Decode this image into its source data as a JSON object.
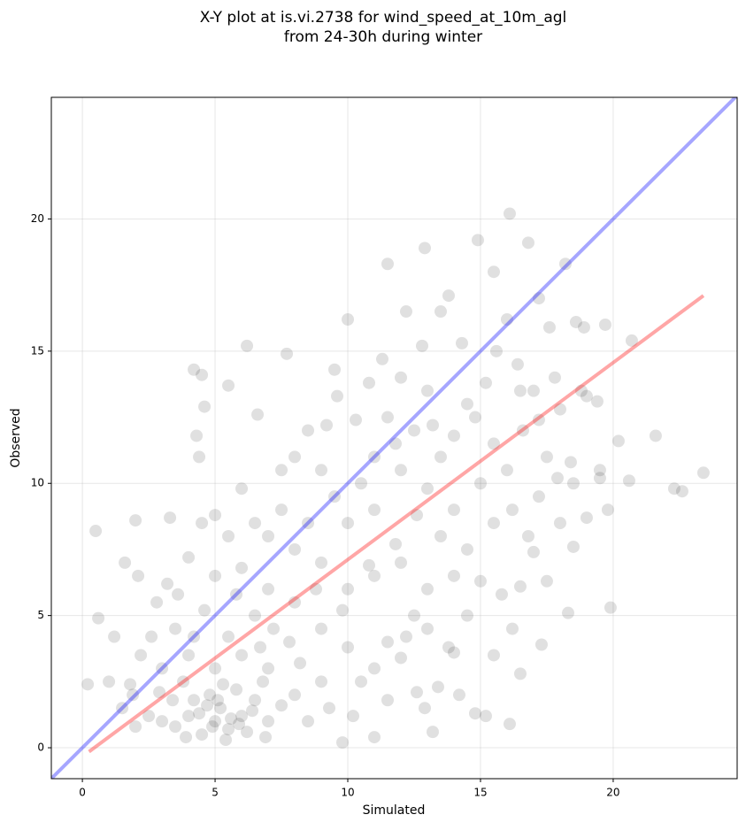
{
  "chart_data": {
    "type": "scatter",
    "title": [
      "X-Y plot at is.vi.2738 for wind_speed_at_10m_agl",
      "from 24-30h during winter"
    ],
    "xlabel": "Simulated",
    "ylabel": "Observed",
    "xlim": [
      -1.17,
      24.67
    ],
    "ylim": [
      -1.17,
      24.6
    ],
    "xticks": [
      0,
      5,
      10,
      15,
      20
    ],
    "yticks": [
      0,
      5,
      10,
      15,
      20
    ],
    "grid": true,
    "series": [
      {
        "color": "#000000",
        "alpha": 0.12,
        "x": [
          0.2,
          0.5,
          0.6,
          1,
          2,
          3.3,
          4.2,
          4.5,
          4.6,
          4.3,
          4.4,
          5.5,
          6.2,
          6.6,
          7.7,
          9.5,
          10,
          11.5,
          12.9,
          14.9,
          16.1,
          16.8,
          15.5,
          17.2,
          18.2,
          19.7,
          20.7,
          21.6,
          22.3,
          22.6,
          23.4,
          20.6,
          20.2,
          19.5,
          19.8,
          19.9,
          18.3,
          17.3,
          16.1,
          15.2,
          14.8,
          13.2,
          9.8,
          11,
          12.6,
          13.4,
          15.5,
          16.5,
          16.2,
          17,
          18.5,
          19,
          19,
          19.4,
          18.6,
          18.9,
          17.6,
          16,
          3,
          3.5,
          4,
          4.5,
          5,
          5.2,
          5.5,
          6,
          4.8,
          5.8,
          6.5,
          3.8,
          4.2,
          5.4,
          6.2,
          7,
          7.5,
          2.5,
          2,
          1.5,
          1.8,
          2.2,
          3,
          4,
          5,
          6,
          7,
          8,
          8.5,
          9,
          7.2,
          6.5,
          5.5,
          4.6,
          3.5,
          2.8,
          2.1,
          1.6,
          3.2,
          4,
          5,
          6,
          7,
          8,
          9,
          10,
          10.5,
          11,
          11.5,
          12,
          12.5,
          13,
          14,
          14.5,
          10,
          11,
          12,
          13,
          14,
          15,
          15.8,
          16.5,
          17.5,
          16.8,
          18,
          17.2,
          18.5,
          17.5,
          16.6,
          18,
          17,
          16.4,
          17.8,
          15.6,
          14.5,
          15.5,
          15,
          14,
          13.5,
          12.5,
          13,
          12,
          11.5,
          11,
          10.5,
          10,
          9.5,
          9,
          8.5,
          8,
          7.5,
          7,
          8,
          9,
          6.5,
          5.5,
          5,
          4.5,
          6,
          7.5,
          8.5,
          11,
          12,
          13,
          14,
          14.3,
          13.5,
          12.2,
          13.8,
          12.8,
          11.3,
          10.8,
          9.6,
          9.2,
          10.3,
          11.8,
          13.2,
          14.8,
          15.2,
          16,
          16.2,
          15.5,
          14.5,
          13.5,
          12.6,
          11.8,
          10.8,
          9.8,
          8.8,
          7.8,
          6.8,
          5.8,
          4.2,
          3.6,
          2.6,
          1.2,
          1.9,
          2.9,
          3.9,
          4.9,
          5.9,
          6.9,
          4.4,
          5.1,
          5.6,
          6.4,
          4.7,
          5.3,
          3.4,
          6.7,
          8.2,
          9.3,
          10.2,
          11.5,
          12.2,
          13.8,
          14.2,
          12.9,
          16.5,
          17.2,
          18.8,
          19.5,
          18.4,
          17.9
        ],
        "y": [
          2.4,
          8.2,
          4.9,
          2.5,
          8.6,
          8.7,
          14.3,
          14.1,
          12.9,
          11.8,
          11,
          13.7,
          15.2,
          12.6,
          14.9,
          14.3,
          16.2,
          18.3,
          18.9,
          19.2,
          20.2,
          19.1,
          18,
          17,
          18.3,
          16,
          15.4,
          11.8,
          9.8,
          9.7,
          10.4,
          10.1,
          11.6,
          10.2,
          9,
          5.3,
          5.1,
          3.9,
          0.9,
          1.2,
          1.3,
          0.6,
          0.2,
          0.4,
          2.1,
          2.3,
          3.5,
          2.8,
          4.5,
          7.4,
          7.6,
          8.7,
          13.3,
          13.1,
          16.1,
          15.9,
          15.9,
          16.2,
          1,
          0.8,
          1.2,
          0.5,
          1,
          1.5,
          0.7,
          1.2,
          2,
          2.2,
          1.8,
          2.5,
          1.8,
          0.3,
          0.6,
          1,
          1.6,
          1.2,
          0.8,
          1.5,
          2.4,
          3.5,
          3,
          3.5,
          3,
          3.5,
          3,
          2,
          1,
          2.5,
          4.5,
          5,
          4.2,
          5.2,
          4.5,
          5.5,
          6.5,
          7,
          6.2,
          7.2,
          6.5,
          6.8,
          6,
          5.5,
          4.5,
          3.8,
          2.5,
          3,
          4,
          3.4,
          5,
          4.5,
          3.6,
          5,
          6,
          6.5,
          7,
          6,
          6.5,
          6.3,
          5.8,
          6.1,
          6.3,
          8,
          8.5,
          9.5,
          10,
          11,
          12,
          12.8,
          13.5,
          14.5,
          14,
          15,
          13,
          11.5,
          10,
          9,
          11,
          12,
          13.5,
          14,
          12.5,
          11,
          10,
          8.5,
          9.5,
          10.5,
          12,
          11,
          9,
          8,
          7.5,
          7,
          8.5,
          8,
          8.8,
          8.5,
          9.8,
          10.5,
          8.5,
          9,
          10.5,
          9.8,
          11.8,
          15.3,
          16.5,
          16.5,
          17.1,
          15.2,
          14.7,
          13.8,
          13.3,
          12.2,
          12.4,
          11.5,
          12.2,
          12.5,
          13.8,
          10.5,
          9,
          8.5,
          7.5,
          8,
          8.8,
          7.7,
          6.9,
          5.2,
          6,
          4,
          2.5,
          5.8,
          4.2,
          5.8,
          4.2,
          4.2,
          2,
          2.1,
          0.4,
          0.8,
          0.9,
          0.4,
          1.3,
          1.8,
          1.1,
          1.4,
          1.6,
          2.4,
          1.8,
          3.8,
          3.2,
          1.5,
          1.2,
          1.8,
          4.2,
          3.8,
          2,
          1.5,
          13.5,
          12.4,
          13.5,
          10.5,
          10.8,
          10.2
        ]
      }
    ],
    "lines": [
      {
        "color": "#0000ff",
        "alpha": 0.35,
        "x": [
          -1.17,
          24.67
        ],
        "y": [
          -1.17,
          24.67
        ]
      },
      {
        "color": "#ff0000",
        "alpha": 0.35,
        "x": [
          0.25,
          23.4
        ],
        "y": [
          -0.15,
          17.1
        ]
      }
    ]
  }
}
